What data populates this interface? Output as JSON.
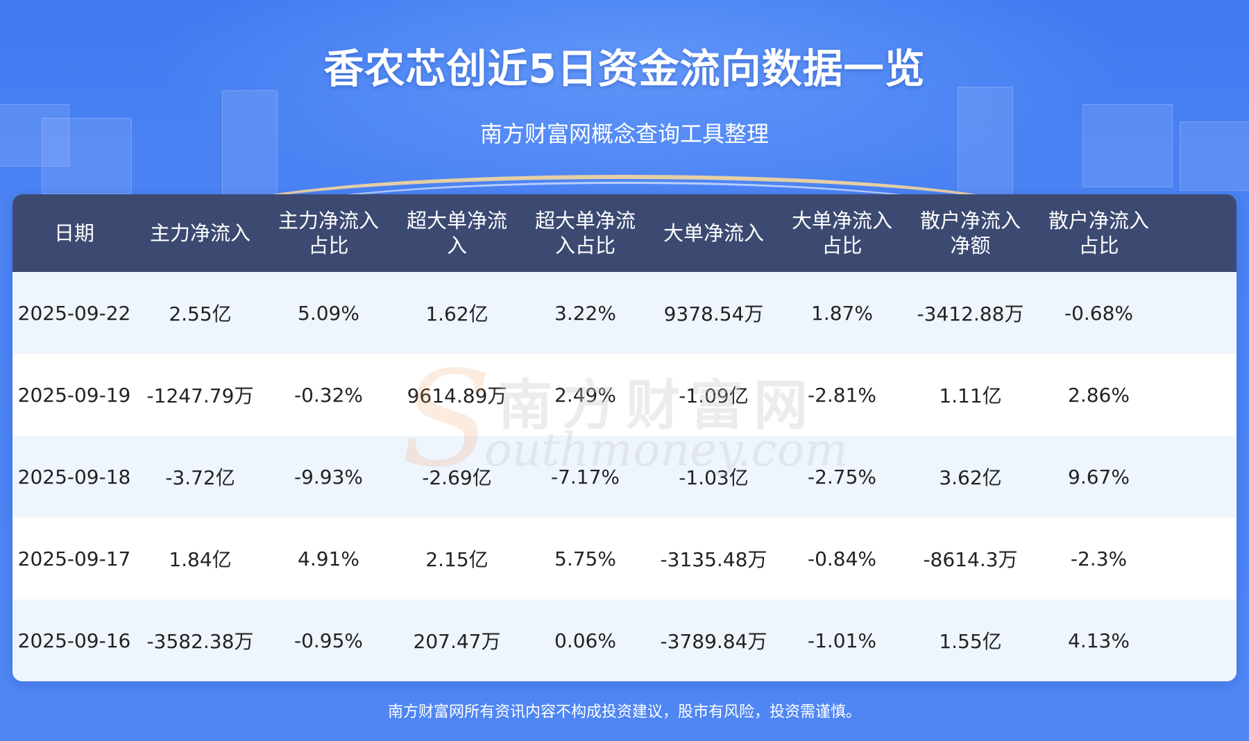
{
  "title": "香农芯创近5日资金流向数据一览",
  "subtitle": "南方财富网概念查询工具整理",
  "table": {
    "headers": [
      "日期",
      "主力净流入",
      "主力净流入\n占比",
      "超大单净流\n入",
      "超大单净流\n入占比",
      "大单净流入",
      "大单净流入\n占比",
      "散户净流入\n净额",
      "散户净流入\n占比"
    ],
    "rows": [
      [
        "2025-09-22",
        "2.55亿",
        "5.09%",
        "1.62亿",
        "3.22%",
        "9378.54万",
        "1.87%",
        "-3412.88万",
        "-0.68%"
      ],
      [
        "2025-09-19",
        "-1247.79万",
        "-0.32%",
        "9614.89万",
        "2.49%",
        "-1.09亿",
        "-2.81%",
        "1.11亿",
        "2.86%"
      ],
      [
        "2025-09-18",
        "-3.72亿",
        "-9.93%",
        "-2.69亿",
        "-7.17%",
        "-1.03亿",
        "-2.75%",
        "3.62亿",
        "9.67%"
      ],
      [
        "2025-09-17",
        "1.84亿",
        "4.91%",
        "2.15亿",
        "5.75%",
        "-3135.48万",
        "-0.84%",
        "-8614.3万",
        "-2.3%"
      ],
      [
        "2025-09-16",
        "-3582.38万",
        "-0.95%",
        "207.47万",
        "0.06%",
        "-3789.84万",
        "-1.01%",
        "1.55亿",
        "4.13%"
      ]
    ]
  },
  "watermark": {
    "letter": "S",
    "cn": "南方财富网",
    "en": "outhmoney.com"
  },
  "footer": "南方财富网所有资讯内容不构成投资建议，股市有风险，投资需谨慎。",
  "colors": {
    "background": "#4a82f3",
    "header_bg": "#3c4a72",
    "row_alt": "#eef5fd",
    "row_base": "#ffffff",
    "text": "#222222"
  }
}
